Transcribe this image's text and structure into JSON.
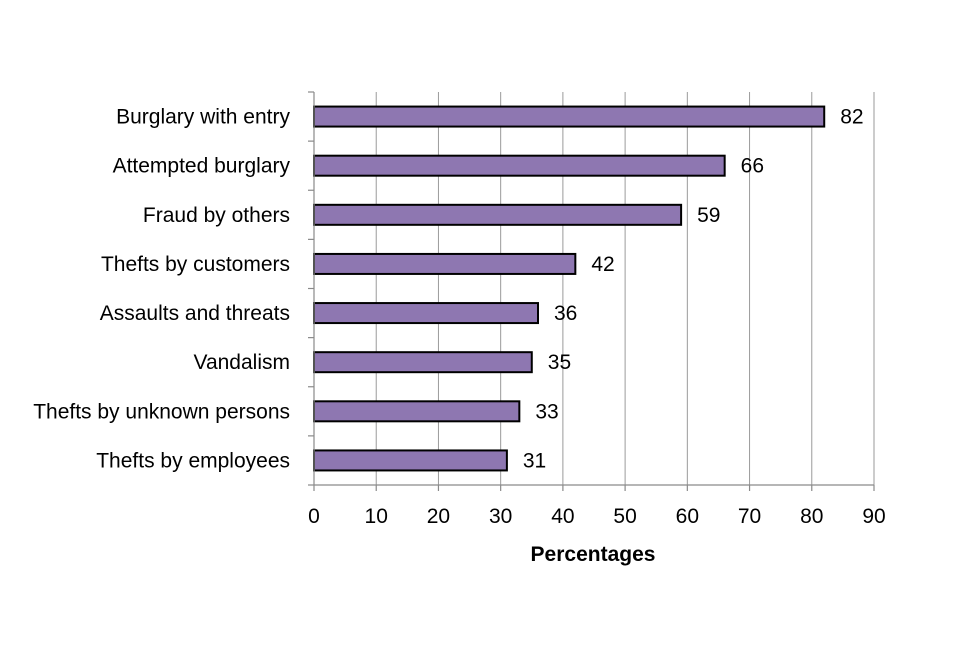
{
  "chart_data": {
    "type": "bar",
    "orientation": "horizontal",
    "categories": [
      "Burglary with entry",
      "Attempted burglary",
      "Fraud by others",
      "Thefts by customers",
      "Assaults and threats",
      "Vandalism",
      "Thefts by unknown persons",
      "Thefts by employees"
    ],
    "values": [
      82,
      66,
      59,
      42,
      36,
      35,
      33,
      31
    ],
    "xlabel": "Percentages",
    "ylabel": "",
    "xlim": [
      0,
      90
    ],
    "xticks": [
      0,
      10,
      20,
      30,
      40,
      50,
      60,
      70,
      80,
      90
    ],
    "grid": "vertical",
    "legend": "none",
    "data_labels": true,
    "colors": {
      "bar_fill": "#8e77b1",
      "bar_stroke": "#000000"
    }
  }
}
